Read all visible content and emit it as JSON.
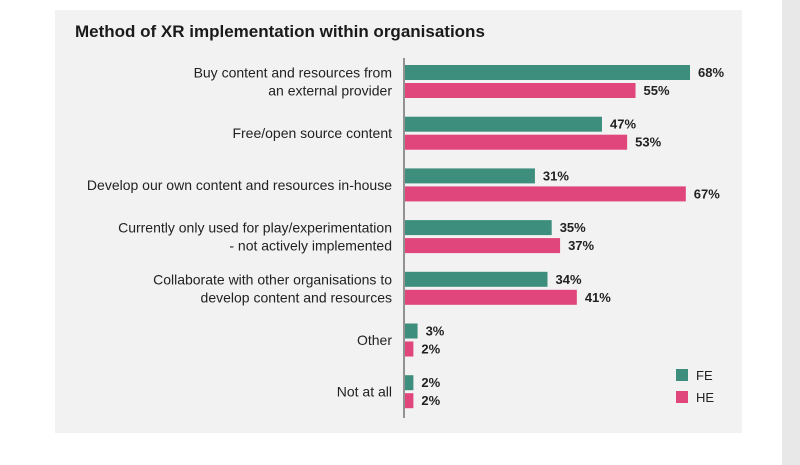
{
  "chart_data": {
    "type": "bar",
    "orientation": "horizontal",
    "title": "Method of XR implementation within organisations",
    "categories": [
      [
        "Buy content and resources from",
        "an external provider"
      ],
      [
        "Free/open source content"
      ],
      [
        "Develop our own content and resources in-house"
      ],
      [
        "Currently only used for play/experimentation",
        "- not actively implemented"
      ],
      [
        "Collaborate with other organisations to",
        "develop content and resources"
      ],
      [
        "Other"
      ],
      [
        "Not at all"
      ]
    ],
    "series": [
      {
        "name": "FE",
        "color": "#3e8e7e",
        "values": [
          68,
          47,
          31,
          35,
          34,
          3,
          2
        ]
      },
      {
        "name": "HE",
        "color": "#e0457b",
        "values": [
          55,
          53,
          67,
          37,
          41,
          2,
          2
        ]
      }
    ],
    "value_suffix": "%",
    "xlim": [
      0,
      68
    ],
    "grid": false,
    "legend_position": "bottom-right"
  }
}
